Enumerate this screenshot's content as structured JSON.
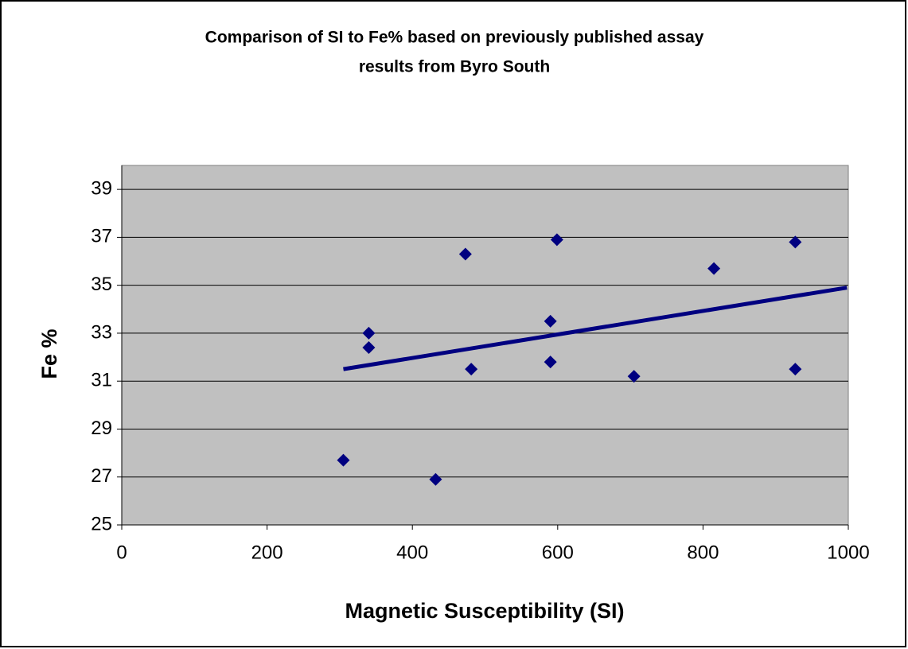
{
  "chart_data": {
    "type": "scatter",
    "title": [
      "Comparison of SI to Fe% based on previously published assay",
      "results from Byro South"
    ],
    "x_label": "Magnetic Susceptibility (SI)",
    "y_label": "Fe %",
    "series": [
      {
        "color": "#000080",
        "x": [
          305,
          432,
          340,
          340,
          473,
          481,
          590,
          590,
          599,
          705,
          815,
          927,
          927
        ],
        "values": [
          27.7,
          26.9,
          33.0,
          32.4,
          36.3,
          31.5,
          33.5,
          31.8,
          36.9,
          31.2,
          35.7,
          36.8,
          31.5
        ]
      }
    ],
    "trendline": {
      "color": "#000080",
      "x": [
        305,
        998
      ],
      "values": [
        31.5,
        34.9
      ]
    },
    "xlim": [
      0,
      1000
    ],
    "xticks": [
      0,
      200,
      400,
      600,
      800,
      1000
    ],
    "ylim": [
      25,
      40
    ],
    "yticks": [
      25,
      27,
      29,
      31,
      33,
      35,
      37,
      39
    ],
    "grid": true,
    "plot_background": "#c0c0c0"
  }
}
